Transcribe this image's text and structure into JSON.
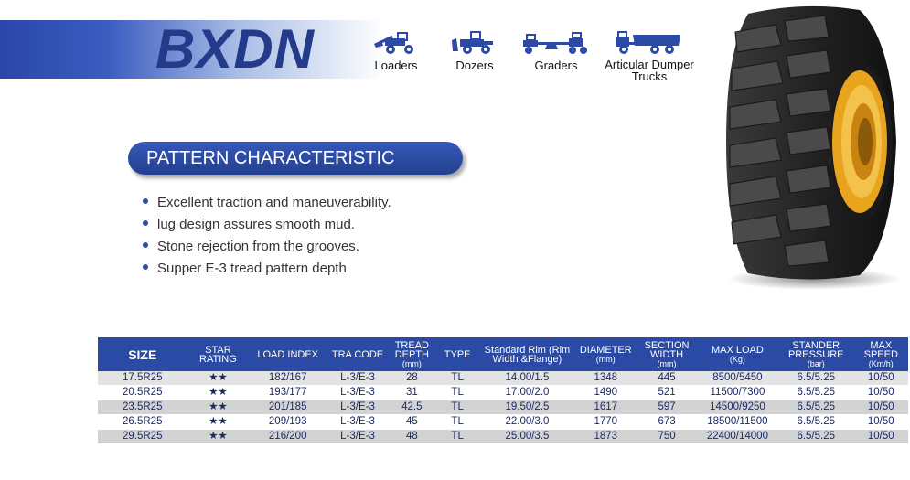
{
  "brand": "BXDN",
  "equipment": [
    {
      "label": "Loaders",
      "icon": "loader-icon"
    },
    {
      "label": "Dozers",
      "icon": "dozer-icon"
    },
    {
      "label": "Graders",
      "icon": "grader-icon"
    },
    {
      "label": "Articular Dumper Trucks",
      "icon": "dumper-truck-icon"
    }
  ],
  "section_title": "PATTERN CHARACTERISTIC",
  "features": [
    "Excellent traction and maneuverability.",
    "lug design assures smooth mud.",
    "Stone rejection from the grooves.",
    "Supper E-3 tread pattern depth"
  ],
  "table": {
    "headers": {
      "size": "SIZE",
      "star": "STAR RATING",
      "load": "LOAD INDEX",
      "tra": "TRA CODE",
      "tread": "TREAD DEPTH",
      "tread_unit": "(mm)",
      "type": "TYPE",
      "rim": "Standard Rim (Rim Width &Flange)",
      "diameter": "DIAMETER",
      "diameter_unit": "(mm)",
      "section": "SECTION WIDTH",
      "section_unit": "(mm)",
      "maxload": "MAX LOAD",
      "maxload_unit": "(Kg)",
      "pressure": "STANDER PRESSURE",
      "pressure_unit": "(bar)",
      "speed": "MAX SPEED",
      "speed_unit": "(Km/h)"
    },
    "rows": [
      {
        "size": "17.5R25",
        "star": "★★",
        "load": "182/167",
        "tra": "L-3/E-3",
        "tread": "28",
        "type": "TL",
        "rim": "14.00/1.5",
        "diameter": "1348",
        "section": "445",
        "maxload": "8500/5450",
        "pressure": "6.5/5.25",
        "speed": "10/50"
      },
      {
        "size": "20.5R25",
        "star": "★★",
        "load": "193/177",
        "tra": "L-3/E-3",
        "tread": "31",
        "type": "TL",
        "rim": "17.00/2.0",
        "diameter": "1490",
        "section": "521",
        "maxload": "11500/7300",
        "pressure": "6.5/5.25",
        "speed": "10/50"
      },
      {
        "size": "23.5R25",
        "star": "★★",
        "load": "201/185",
        "tra": "L-3/E-3",
        "tread": "42.5",
        "type": "TL",
        "rim": "19.50/2.5",
        "diameter": "1617",
        "section": "597",
        "maxload": "14500/9250",
        "pressure": "6.5/5.25",
        "speed": "10/50"
      },
      {
        "size": "26.5R25",
        "star": "★★",
        "load": "209/193",
        "tra": "L-3/E-3",
        "tread": "45",
        "type": "TL",
        "rim": "22.00/3.0",
        "diameter": "1770",
        "section": "673",
        "maxload": "18500/11500",
        "pressure": "6.5/5.25",
        "speed": "10/50"
      },
      {
        "size": "29.5R25",
        "star": "★★",
        "load": "216/200",
        "tra": "L-3/E-3",
        "tread": "48",
        "type": "TL",
        "rim": "25.00/3.5",
        "diameter": "1873",
        "section": "750",
        "maxload": "22400/14000",
        "pressure": "6.5/5.25",
        "speed": "10/50"
      }
    ]
  },
  "colors": {
    "brand_blue": "#243a8a",
    "header_blue": "#2b4aa5",
    "rim_yellow": "#e8a41c"
  }
}
